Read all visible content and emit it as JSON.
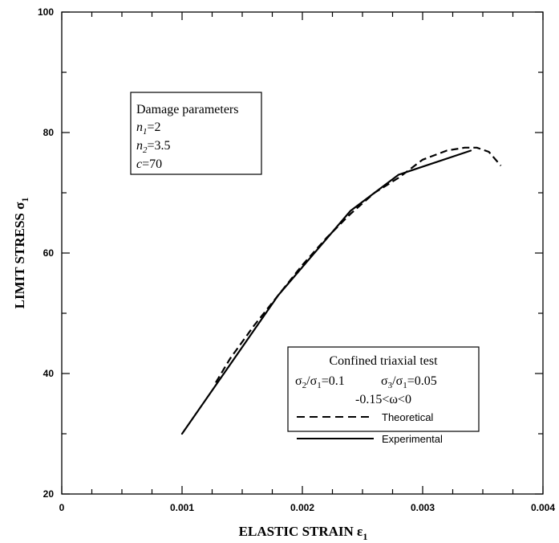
{
  "chart_data": {
    "type": "line",
    "xlabel": "ELASTIC STRAIN ε",
    "xlabel_sub": "1",
    "ylabel": "LIMIT STRESS σ",
    "ylabel_sub": "1",
    "xlim": [
      0,
      0.004
    ],
    "ylim": [
      20,
      100
    ],
    "x_ticks": [
      "0",
      "0.001",
      "0.002",
      "0.003",
      "0.004"
    ],
    "y_ticks": [
      "20",
      "40",
      "60",
      "80",
      "100"
    ],
    "grid": false,
    "series": [
      {
        "name": "Theoretical",
        "style": "dashed",
        "x": [
          0.00128,
          0.0014,
          0.0016,
          0.0018,
          0.002,
          0.0022,
          0.0024,
          0.0026,
          0.0028,
          0.003,
          0.0032,
          0.00335,
          0.00345,
          0.00355,
          0.00365
        ],
        "y": [
          38.5,
          42.5,
          48,
          53,
          58,
          62.5,
          66.5,
          70,
          72.5,
          75.5,
          77,
          77.5,
          77.5,
          76.8,
          74.5
        ]
      },
      {
        "name": "Experimental",
        "style": "solid",
        "x": [
          0.001,
          0.0018,
          0.0024,
          0.0028,
          0.0034
        ],
        "y": [
          30,
          53,
          67,
          73,
          77
        ]
      }
    ]
  },
  "params_box": {
    "title": "Damage parameters",
    "lines": [
      {
        "sym": "n",
        "sub": "1",
        "rest": "=2"
      },
      {
        "sym": "n",
        "sub": "2",
        "rest": "=3.5"
      },
      {
        "sym": "c",
        "sub": "",
        "rest": "=70"
      }
    ]
  },
  "legend_box": {
    "title": "Confined triaxial test",
    "ratio1_num": "σ",
    "ratio1_num_sub": "2",
    "ratio1_den": "/σ",
    "ratio1_den_sub": "1",
    "ratio1_val": "=0.1",
    "ratio2_num": "σ",
    "ratio2_num_sub": "3",
    "ratio2_den": "/σ",
    "ratio2_den_sub": "1",
    "ratio2_val": "=0.05",
    "omega_range": "-0.15<ω<0",
    "theoretical_label": "Theoretical",
    "experimental_label": "Experimental"
  }
}
